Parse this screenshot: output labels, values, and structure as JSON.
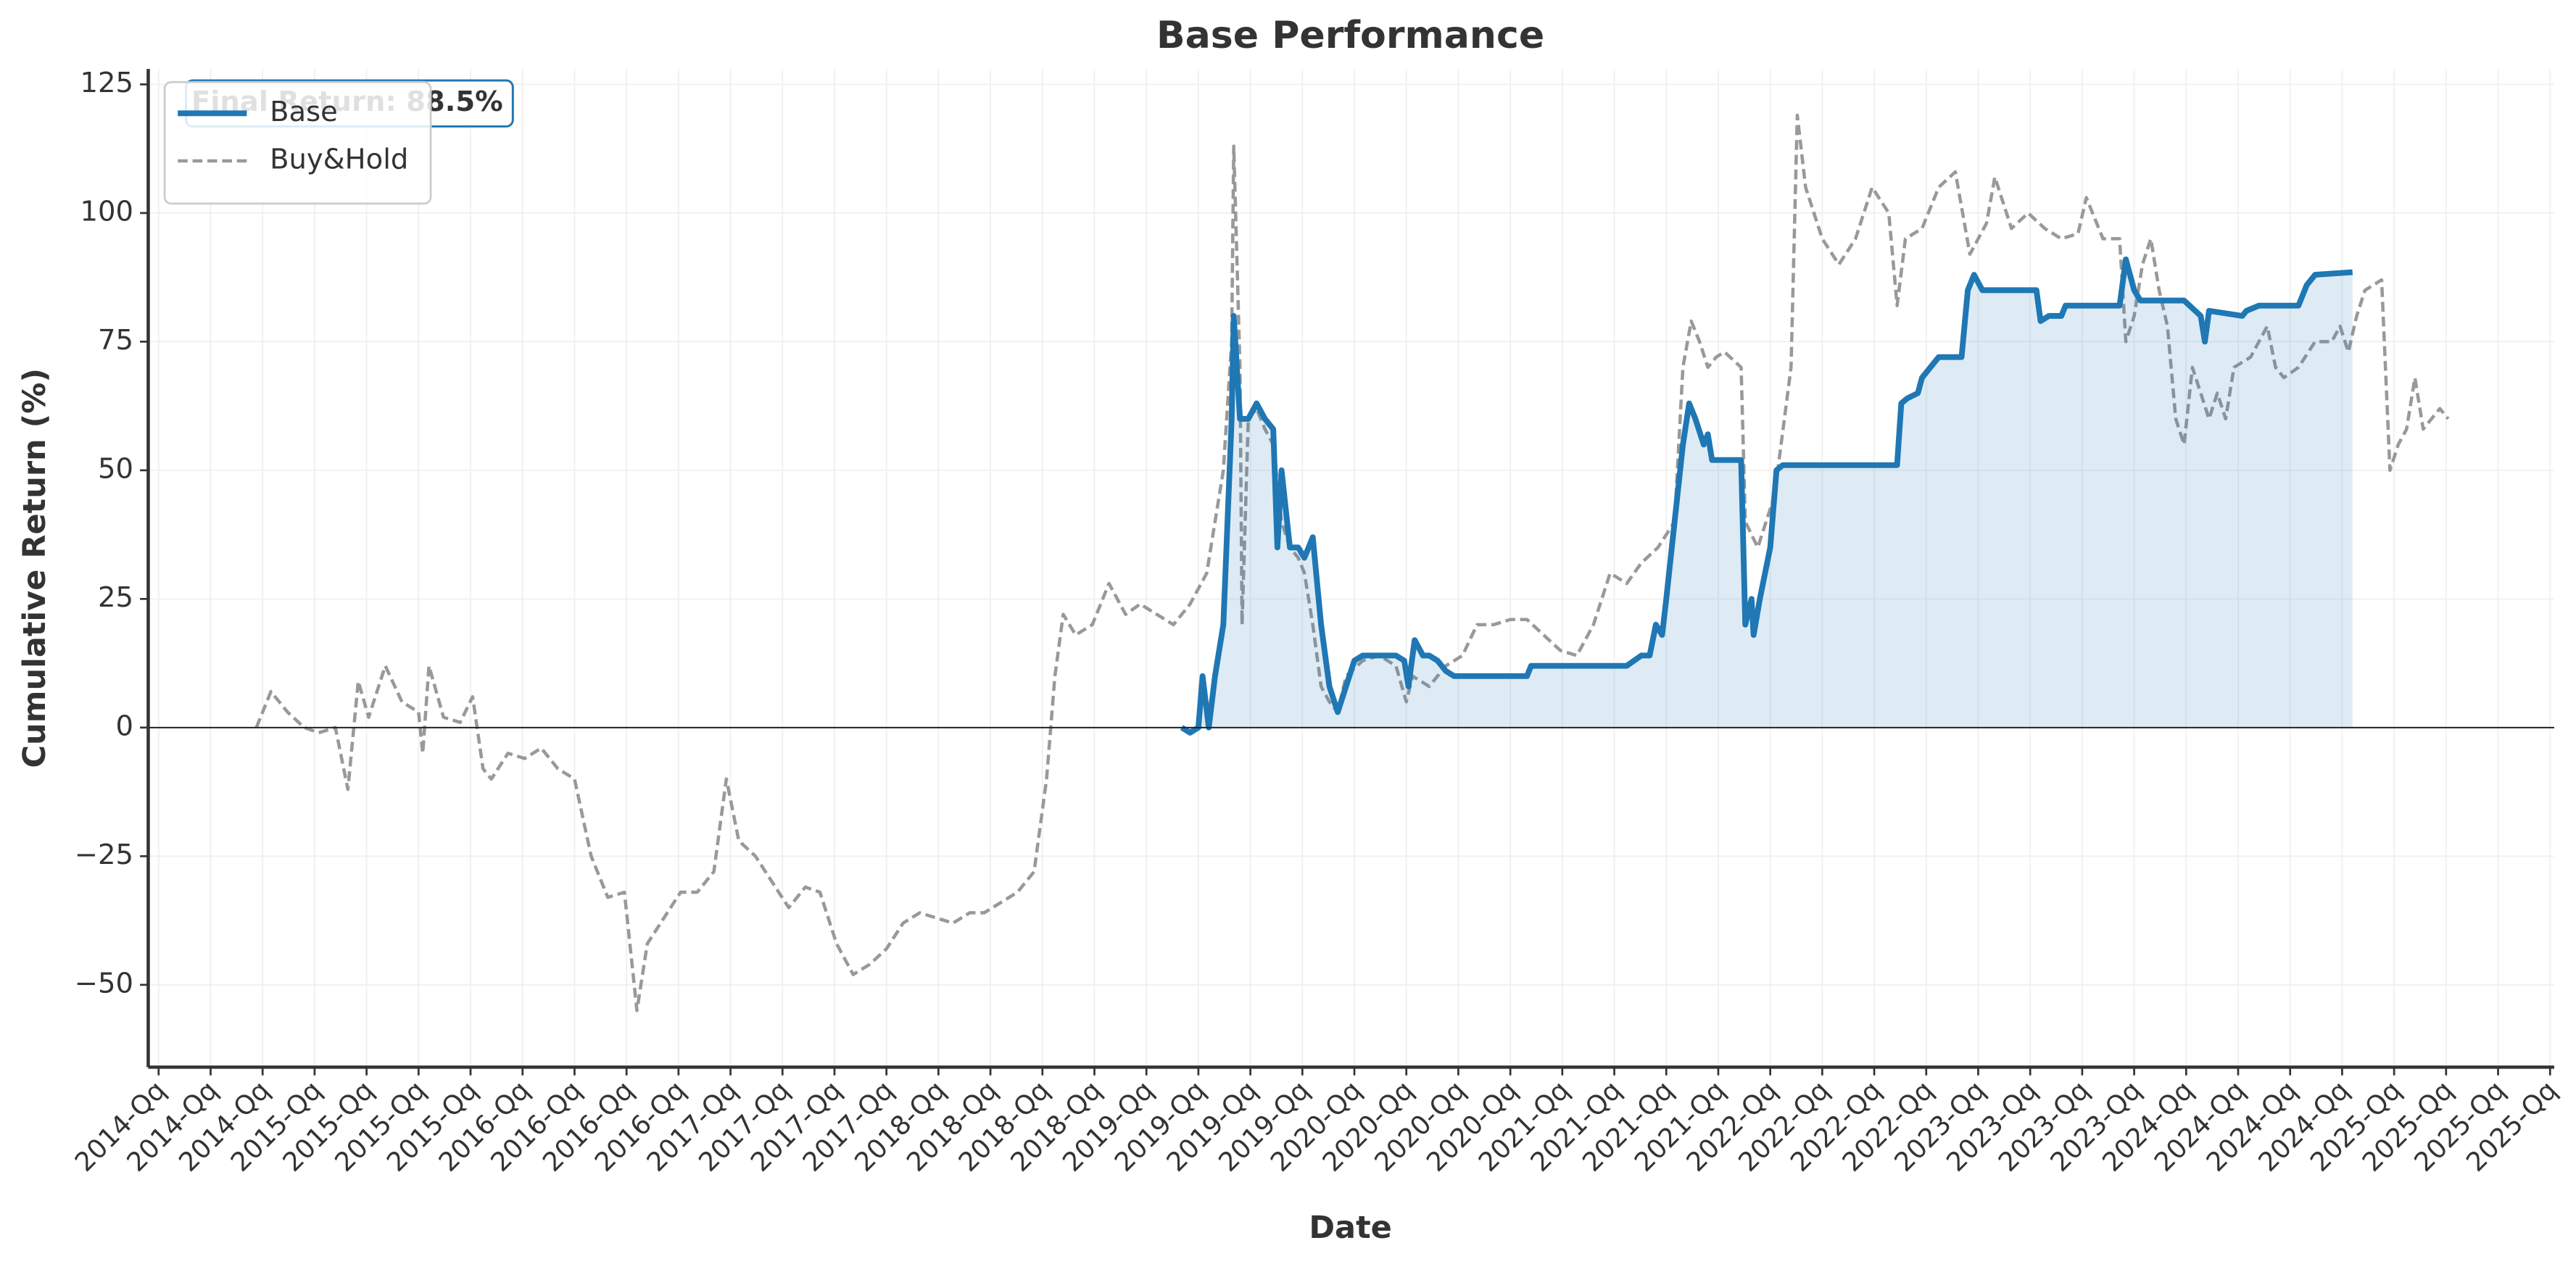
{
  "chart_data": {
    "type": "line",
    "title": "Base Performance",
    "xlabel": "Date",
    "ylabel": "Cumulative Return (%)",
    "annotation": "Final Return: 88.5%",
    "legend": "upper left",
    "grid": true,
    "zero_line": true,
    "xlim": [
      2014.2,
      2025.77
    ],
    "ylim": [
      -66,
      128
    ],
    "yticks": [
      {
        "value": -50,
        "label": "−50"
      },
      {
        "value": -25,
        "label": "−25"
      },
      0,
      25,
      50,
      75,
      100,
      125
    ],
    "xticks": [
      {
        "value": 2014.25,
        "label": "2014-Qq"
      },
      {
        "value": 2014.5,
        "label": "2014-Qq"
      },
      {
        "value": 2014.75,
        "label": "2014-Qq"
      },
      {
        "value": 2015.0,
        "label": "2015-Qq"
      },
      {
        "value": 2015.25,
        "label": "2015-Qq"
      },
      {
        "value": 2015.5,
        "label": "2015-Qq"
      },
      {
        "value": 2015.75,
        "label": "2015-Qq"
      },
      {
        "value": 2016.0,
        "label": "2016-Qq"
      },
      {
        "value": 2016.25,
        "label": "2016-Qq"
      },
      {
        "value": 2016.5,
        "label": "2016-Qq"
      },
      {
        "value": 2016.75,
        "label": "2016-Qq"
      },
      {
        "value": 2017.0,
        "label": "2017-Qq"
      },
      {
        "value": 2017.25,
        "label": "2017-Qq"
      },
      {
        "value": 2017.5,
        "label": "2017-Qq"
      },
      {
        "value": 2017.75,
        "label": "2017-Qq"
      },
      {
        "value": 2018.0,
        "label": "2018-Qq"
      },
      {
        "value": 2018.25,
        "label": "2018-Qq"
      },
      {
        "value": 2018.5,
        "label": "2018-Qq"
      },
      {
        "value": 2018.75,
        "label": "2018-Qq"
      },
      {
        "value": 2019.0,
        "label": "2019-Qq"
      },
      {
        "value": 2019.25,
        "label": "2019-Qq"
      },
      {
        "value": 2019.5,
        "label": "2019-Qq"
      },
      {
        "value": 2019.75,
        "label": "2019-Qq"
      },
      {
        "value": 2020.0,
        "label": "2020-Qq"
      },
      {
        "value": 2020.25,
        "label": "2020-Qq"
      },
      {
        "value": 2020.5,
        "label": "2020-Qq"
      },
      {
        "value": 2020.75,
        "label": "2020-Qq"
      },
      {
        "value": 2021.0,
        "label": "2021-Qq"
      },
      {
        "value": 2021.25,
        "label": "2021-Qq"
      },
      {
        "value": 2021.5,
        "label": "2021-Qq"
      },
      {
        "value": 2021.75,
        "label": "2021-Qq"
      },
      {
        "value": 2022.0,
        "label": "2022-Qq"
      },
      {
        "value": 2022.25,
        "label": "2022-Qq"
      },
      {
        "value": 2022.5,
        "label": "2022-Qq"
      },
      {
        "value": 2022.75,
        "label": "2022-Qq"
      },
      {
        "value": 2023.0,
        "label": "2023-Qq"
      },
      {
        "value": 2023.25,
        "label": "2023-Qq"
      },
      {
        "value": 2023.5,
        "label": "2023-Qq"
      },
      {
        "value": 2023.75,
        "label": "2023-Qq"
      },
      {
        "value": 2024.0,
        "label": "2024-Qq"
      },
      {
        "value": 2024.25,
        "label": "2024-Qq"
      },
      {
        "value": 2024.5,
        "label": "2024-Qq"
      },
      {
        "value": 2024.75,
        "label": "2024-Qq"
      },
      {
        "value": 2025.0,
        "label": "2025-Qq"
      },
      {
        "value": 2025.25,
        "label": "2025-Qq"
      },
      {
        "value": 2025.5,
        "label": "2025-Qq"
      },
      {
        "value": 2025.75,
        "label": "2025-Qq"
      }
    ],
    "series": [
      {
        "name": "Base",
        "color": "#1f77b4",
        "style": "solid",
        "fill": true,
        "x": [
          2019.17,
          2019.21,
          2019.25,
          2019.27,
          2019.3,
          2019.33,
          2019.37,
          2019.39,
          2019.41,
          2019.42,
          2019.45,
          2019.49,
          2019.53,
          2019.57,
          2019.61,
          2019.63,
          2019.65,
          2019.69,
          2019.73,
          2019.76,
          2019.8,
          2019.84,
          2019.88,
          2019.92,
          2019.96,
          2020.0,
          2020.04,
          2020.12,
          2020.2,
          2020.24,
          2020.26,
          2020.29,
          2020.33,
          2020.36,
          2020.4,
          2020.44,
          2020.48,
          2020.83,
          2020.85,
          2021.31,
          2021.38,
          2021.42,
          2021.45,
          2021.48,
          2021.5,
          2021.54,
          2021.58,
          2021.61,
          2021.64,
          2021.68,
          2021.7,
          2021.72,
          2021.86,
          2021.88,
          2021.91,
          2021.92,
          2021.95,
          2022.0,
          2022.03,
          2022.06,
          2022.57,
          2022.61,
          2022.63,
          2022.66,
          2022.71,
          2022.73,
          2022.81,
          2022.92,
          2022.95,
          2022.98,
          2023.02,
          2023.28,
          2023.3,
          2023.34,
          2023.4,
          2023.42,
          2023.68,
          2023.71,
          2023.75,
          2023.78,
          2023.99,
          2024.07,
          2024.09,
          2024.11,
          2024.27,
          2024.29,
          2024.35,
          2024.54,
          2024.58,
          2024.62,
          2024.8
        ],
        "values": [
          0,
          -1,
          0,
          10,
          0,
          10,
          20,
          40,
          60,
          80,
          60,
          60,
          63,
          60,
          58,
          35,
          50,
          35,
          35,
          33,
          37,
          20,
          8,
          3,
          8,
          13,
          14,
          14,
          14,
          13,
          8,
          17,
          14,
          14,
          13,
          11,
          10,
          10,
          12,
          12,
          14,
          14,
          20,
          18,
          25,
          40,
          55,
          63,
          60,
          55,
          57,
          52,
          52,
          20,
          25,
          18,
          25,
          35,
          50,
          51,
          51,
          51,
          63,
          64,
          65,
          68,
          72,
          72,
          85,
          88,
          85,
          85,
          79,
          80,
          80,
          82,
          82,
          91,
          85,
          83,
          83,
          80,
          75,
          81,
          80,
          81,
          82,
          82,
          86,
          88,
          88.5
        ]
      },
      {
        "name": "Buy&Hold",
        "color": "#999999",
        "style": "dashed",
        "fill": false,
        "x": [
          2014.72,
          2014.79,
          2014.87,
          2014.95,
          2015.02,
          2015.1,
          2015.16,
          2015.21,
          2015.26,
          2015.34,
          2015.42,
          2015.5,
          2015.52,
          2015.55,
          2015.62,
          2015.7,
          2015.76,
          2015.81,
          2015.85,
          2015.93,
          2016.01,
          2016.09,
          2016.17,
          2016.25,
          2016.33,
          2016.41,
          2016.49,
          2016.55,
          2016.6,
          2016.68,
          2016.76,
          2016.84,
          2016.92,
          2016.98,
          2017.04,
          2017.12,
          2017.2,
          2017.28,
          2017.36,
          2017.43,
          2017.51,
          2017.59,
          2017.67,
          2017.75,
          2017.83,
          2017.91,
          2017.99,
          2018.07,
          2018.15,
          2018.22,
          2018.3,
          2018.38,
          2018.46,
          2018.52,
          2018.56,
          2018.6,
          2018.66,
          2018.74,
          2018.82,
          2018.9,
          2018.97,
          2019.05,
          2019.13,
          2019.21,
          2019.29,
          2019.37,
          2019.41,
          2019.42,
          2019.45,
          2019.46,
          2019.49,
          2019.53,
          2019.57,
          2019.61,
          2019.65,
          2019.69,
          2019.73,
          2019.76,
          2019.8,
          2019.84,
          2019.88,
          2019.92,
          2019.96,
          2020.04,
          2020.12,
          2020.2,
          2020.25,
          2020.28,
          2020.36,
          2020.44,
          2020.52,
          2020.59,
          2020.67,
          2020.75,
          2020.83,
          2020.91,
          2020.99,
          2021.07,
          2021.15,
          2021.23,
          2021.31,
          2021.38,
          2021.46,
          2021.54,
          2021.58,
          2021.62,
          2021.66,
          2021.7,
          2021.74,
          2021.78,
          2021.86,
          2021.88,
          2021.94,
          2022.02,
          2022.1,
          2022.13,
          2022.17,
          2022.25,
          2022.33,
          2022.41,
          2022.49,
          2022.57,
          2022.61,
          2022.65,
          2022.73,
          2022.81,
          2022.89,
          2022.96,
          2023.04,
          2023.08,
          2023.16,
          2023.24,
          2023.32,
          2023.4,
          2023.48,
          2023.52,
          2023.6,
          2023.68,
          2023.71,
          2023.75,
          2023.79,
          2023.83,
          2023.87,
          2023.91,
          2023.95,
          2023.99,
          2024.03,
          2024.07,
          2024.11,
          2024.15,
          2024.19,
          2024.23,
          2024.31,
          2024.39,
          2024.43,
          2024.47,
          2024.54,
          2024.62,
          2024.7,
          2024.74,
          2024.78,
          2024.82,
          2024.86,
          2024.94,
          2024.98,
          2025.02,
          2025.06,
          2025.1,
          2025.14,
          2025.18,
          2025.22,
          2025.26
        ],
        "values": [
          0,
          7,
          3,
          0,
          -1,
          0,
          -12,
          9,
          2,
          12,
          5,
          3,
          -5,
          12,
          2,
          1,
          6,
          -8,
          -10,
          -5,
          -6,
          -4,
          -8,
          -10,
          -25,
          -33,
          -32,
          -55,
          -42,
          -37,
          -32,
          -32,
          -28,
          -10,
          -22,
          -25,
          -30,
          -35,
          -31,
          -32,
          -42,
          -48,
          -46,
          -43,
          -38,
          -36,
          -37,
          -38,
          -36,
          -36,
          -34,
          -32,
          -28,
          -10,
          10,
          22,
          18,
          20,
          28,
          22,
          24,
          22,
          20,
          24,
          30,
          50,
          75,
          113,
          70,
          20,
          60,
          62,
          58,
          55,
          40,
          35,
          33,
          30,
          20,
          8,
          5,
          3,
          10,
          13,
          14,
          12,
          5,
          10,
          8,
          12,
          14,
          20,
          20,
          21,
          21,
          18,
          15,
          14,
          20,
          30,
          28,
          32,
          35,
          40,
          70,
          79,
          75,
          70,
          72,
          73,
          70,
          40,
          35,
          45,
          70,
          119,
          105,
          95,
          90,
          95,
          105,
          100,
          82,
          95,
          97,
          105,
          108,
          92,
          98,
          107,
          97,
          100,
          97,
          95,
          96,
          103,
          95,
          95,
          75,
          80,
          90,
          95,
          85,
          78,
          60,
          55,
          70,
          65,
          60,
          65,
          60,
          70,
          72,
          78,
          70,
          68,
          70,
          75,
          75,
          78,
          73,
          80,
          85,
          87,
          50,
          55,
          58,
          68,
          58,
          60,
          62,
          60
        ]
      }
    ]
  }
}
